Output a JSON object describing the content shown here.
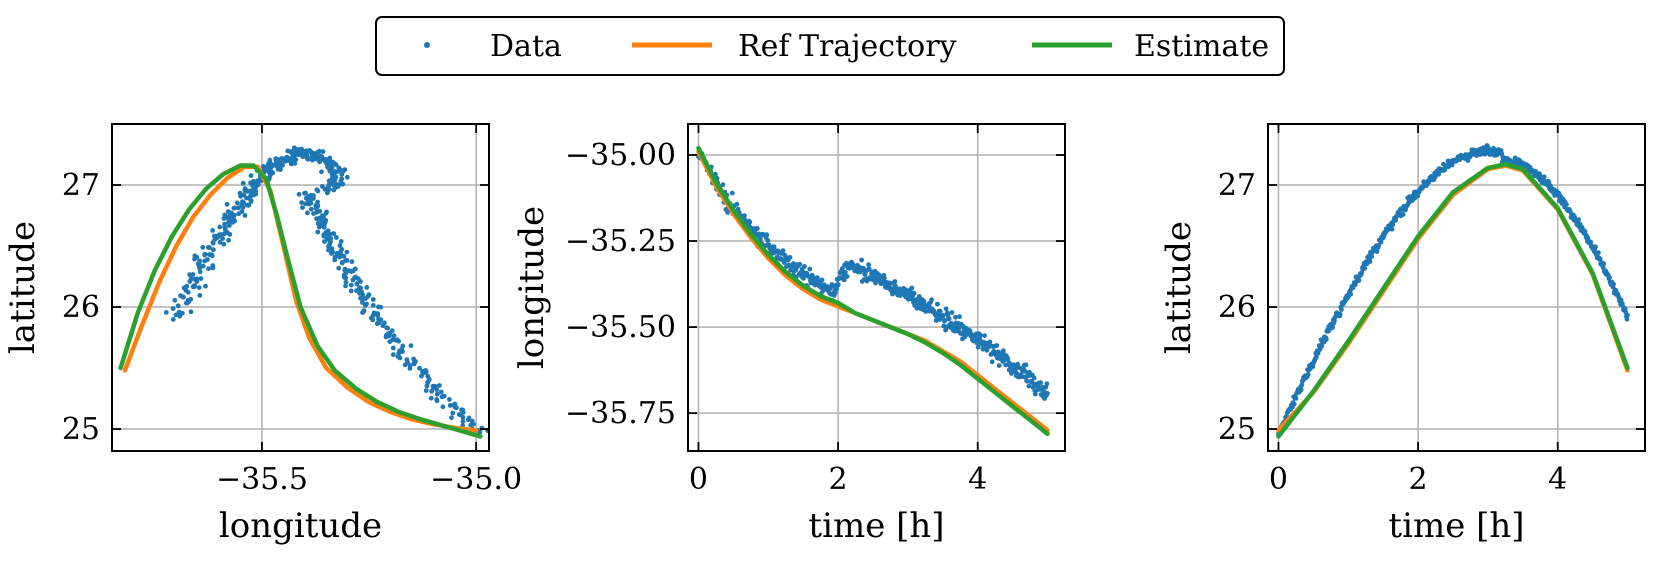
{
  "legend": {
    "items": [
      {
        "label": "Data",
        "kind": "scatter",
        "color": "#1f77b4"
      },
      {
        "label": "Ref Trajectory",
        "kind": "line",
        "color": "#ff7f0e"
      },
      {
        "label": "Estimate",
        "kind": "line",
        "color": "#2ca02c"
      }
    ]
  },
  "chart_data": [
    {
      "type": "scatter",
      "title": "",
      "xlabel": "longitude",
      "ylabel": "latitude",
      "xlim": [
        -35.85,
        -34.97
      ],
      "ylim": [
        24.82,
        27.5
      ],
      "xticks": [
        -35.5,
        -35.0
      ],
      "xtick_labels": [
        "−35.5",
        "−35.0"
      ],
      "yticks": [
        25,
        26,
        27
      ],
      "ytick_labels": [
        "25",
        "26",
        "27"
      ],
      "grid": true,
      "series": [
        {
          "name": "Ref Trajectory",
          "kind": "line",
          "color": "#ff7f0e",
          "x": [
            -35.82,
            -35.78,
            -35.74,
            -35.7,
            -35.66,
            -35.62,
            -35.58,
            -35.54,
            -35.51,
            -35.48,
            -35.45,
            -35.42,
            -35.39,
            -35.35,
            -35.3,
            -35.25,
            -35.2,
            -35.15,
            -35.1,
            -35.05,
            -35.0
          ],
          "y": [
            25.48,
            25.85,
            26.2,
            26.5,
            26.74,
            26.92,
            27.06,
            27.15,
            27.15,
            26.95,
            26.5,
            26.05,
            25.75,
            25.5,
            25.34,
            25.22,
            25.14,
            25.08,
            25.04,
            25.01,
            24.99
          ]
        },
        {
          "name": "Estimate",
          "kind": "line",
          "color": "#2ca02c",
          "x": [
            -35.83,
            -35.79,
            -35.75,
            -35.71,
            -35.67,
            -35.63,
            -35.59,
            -35.55,
            -35.52,
            -35.49,
            -35.465,
            -35.44,
            -35.41,
            -35.37,
            -35.33,
            -35.28,
            -35.23,
            -35.18,
            -35.13,
            -35.08,
            -35.03,
            -34.99
          ],
          "y": [
            25.5,
            25.95,
            26.3,
            26.58,
            26.8,
            26.97,
            27.09,
            27.16,
            27.16,
            27.05,
            26.75,
            26.4,
            26.0,
            25.68,
            25.48,
            25.33,
            25.22,
            25.14,
            25.08,
            25.03,
            24.98,
            24.94
          ]
        },
        {
          "name": "Data",
          "kind": "scatter",
          "color": "#1f77b4",
          "count": 600
        }
      ]
    },
    {
      "type": "scatter",
      "title": "",
      "xlabel": "time [h]",
      "ylabel": "longitude",
      "xlim": [
        -0.15,
        5.25
      ],
      "ylim": [
        -35.86,
        -34.91
      ],
      "xticks": [
        0,
        2,
        4
      ],
      "xtick_labels": [
        "0",
        "2",
        "4"
      ],
      "yticks": [
        -35.0,
        -35.25,
        -35.5,
        -35.75
      ],
      "ytick_labels": [
        "−35.00",
        "−35.25",
        "−35.50",
        "−35.75"
      ],
      "grid": true,
      "series": [
        {
          "name": "Ref Trajectory",
          "kind": "line",
          "color": "#ff7f0e",
          "x": [
            0,
            0.25,
            0.5,
            0.75,
            1.0,
            1.25,
            1.5,
            1.75,
            2.0,
            2.25,
            2.5,
            2.75,
            3.0,
            3.25,
            3.5,
            3.75,
            4.0,
            4.25,
            4.5,
            4.75,
            5.0
          ],
          "y": [
            -34.99,
            -35.09,
            -35.17,
            -35.24,
            -35.3,
            -35.35,
            -35.39,
            -35.42,
            -35.44,
            -35.46,
            -35.48,
            -35.5,
            -35.52,
            -35.54,
            -35.57,
            -35.6,
            -35.64,
            -35.68,
            -35.72,
            -35.76,
            -35.8
          ]
        },
        {
          "name": "Estimate",
          "kind": "line",
          "color": "#2ca02c",
          "x": [
            0,
            0.25,
            0.5,
            0.75,
            1.0,
            1.25,
            1.5,
            1.75,
            2.0,
            2.25,
            2.5,
            2.75,
            3.0,
            3.25,
            3.5,
            3.75,
            4.0,
            4.25,
            4.5,
            4.75,
            5.0
          ],
          "y": [
            -34.98,
            -35.08,
            -35.16,
            -35.23,
            -35.29,
            -35.34,
            -35.38,
            -35.41,
            -35.43,
            -35.46,
            -35.48,
            -35.5,
            -35.52,
            -35.545,
            -35.575,
            -35.61,
            -35.65,
            -35.69,
            -35.73,
            -35.77,
            -35.81
          ]
        },
        {
          "name": "Data",
          "kind": "scatter",
          "color": "#1f77b4",
          "count": 600
        }
      ]
    },
    {
      "type": "scatter",
      "title": "",
      "xlabel": "time [h]",
      "ylabel": "latitude",
      "xlim": [
        -0.15,
        5.25
      ],
      "ylim": [
        24.82,
        27.5
      ],
      "xticks": [
        0,
        2,
        4
      ],
      "xtick_labels": [
        "0",
        "2",
        "4"
      ],
      "yticks": [
        25,
        26,
        27
      ],
      "ytick_labels": [
        "25",
        "26",
        "27"
      ],
      "grid": true,
      "series": [
        {
          "name": "Ref Trajectory",
          "kind": "line",
          "color": "#ff7f0e",
          "x": [
            0,
            0.5,
            1.0,
            1.5,
            2.0,
            2.5,
            3.0,
            3.25,
            3.5,
            4.0,
            4.5,
            5.0
          ],
          "y": [
            24.99,
            25.3,
            25.7,
            26.13,
            26.56,
            26.92,
            27.13,
            27.16,
            27.12,
            26.8,
            26.27,
            25.48
          ]
        },
        {
          "name": "Estimate",
          "kind": "line",
          "color": "#2ca02c",
          "x": [
            0,
            0.5,
            1.0,
            1.5,
            2.0,
            2.5,
            3.0,
            3.25,
            3.5,
            4.0,
            4.5,
            5.0
          ],
          "y": [
            24.94,
            25.31,
            25.72,
            26.15,
            26.58,
            26.94,
            27.14,
            27.17,
            27.13,
            26.81,
            26.28,
            25.5
          ]
        },
        {
          "name": "Data",
          "kind": "scatter",
          "color": "#1f77b4",
          "count": 600
        }
      ]
    }
  ]
}
